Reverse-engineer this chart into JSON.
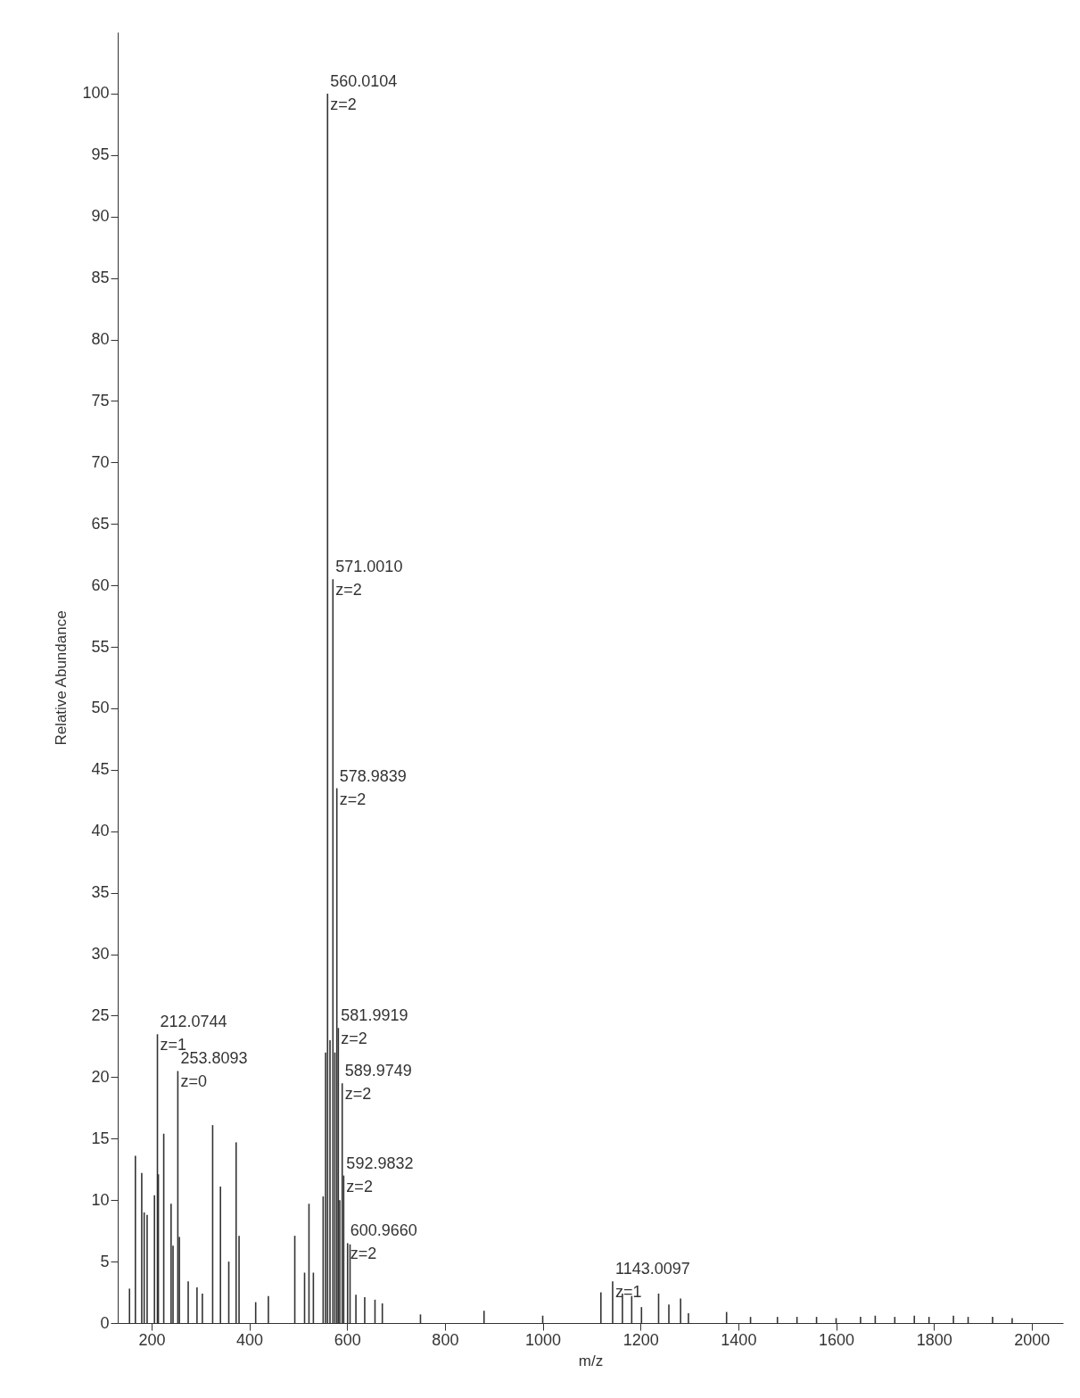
{
  "chart_data": {
    "type": "bar",
    "xlabel": "m/z",
    "ylabel": "Relative Abundance",
    "x": [
      155,
      167,
      180,
      185,
      191,
      206,
      212.0744,
      214,
      225,
      240,
      244,
      253.8093,
      257,
      275,
      293,
      304,
      325,
      341,
      358,
      373,
      379,
      413,
      439,
      493,
      513,
      522,
      531,
      551,
      556,
      560.0104,
      565,
      571.001,
      575,
      578.9839,
      581.9919,
      585,
      589.9749,
      592.9832,
      600.966,
      606,
      618,
      636,
      657,
      672,
      750,
      880,
      1000,
      1119,
      1143.0097,
      1163,
      1182,
      1202,
      1237,
      1258,
      1282,
      1298,
      1376,
      1425,
      1480,
      1520,
      1560,
      1600,
      1650,
      1680,
      1720,
      1760,
      1790,
      1840,
      1870,
      1920,
      1960
    ],
    "series": [
      {
        "color": "#333333",
        "values": [
          2.8,
          13.6,
          12.2,
          9,
          8.8,
          10.4,
          23.5,
          12.1,
          15.4,
          9.7,
          6.3,
          20.5,
          7,
          3.4,
          2.9,
          2.4,
          16.1,
          11.1,
          5,
          14.7,
          7.1,
          1.7,
          2.2,
          7.1,
          4.1,
          9.7,
          4.1,
          10.3,
          22,
          100,
          23,
          60.5,
          22,
          43.5,
          24,
          10,
          19.5,
          12,
          6.5,
          6.4,
          2.3,
          2.1,
          1.9,
          1.6,
          0.7,
          1,
          0.6,
          2.5,
          3.4,
          2.4,
          2.2,
          1.3,
          2.4,
          1.5,
          2,
          0.8,
          0.9,
          0.5,
          0.5,
          0.5,
          0.5,
          0.4,
          0.5,
          0.6,
          0.5,
          0.6,
          0.5,
          0.6,
          0.5,
          0.5,
          0.4
        ]
      }
    ],
    "xlim": [
      140,
      2055
    ],
    "xticks": [
      200,
      400,
      600,
      800,
      1000,
      1200,
      1400,
      1600,
      1800,
      2000
    ],
    "ylim": [
      0,
      105
    ],
    "yticks": [
      0,
      5,
      10,
      15,
      20,
      25,
      30,
      35,
      40,
      45,
      50,
      55,
      60,
      65,
      70,
      75,
      80,
      85,
      90,
      95,
      100
    ],
    "grid": false,
    "legend": false,
    "annotations": [
      {
        "text": "560.0104\nz=2",
        "x": 560.0104,
        "y": 100
      },
      {
        "text": "571.0010\nz=2",
        "x": 571.001,
        "y": 60.5
      },
      {
        "text": "578.9839\nz=2",
        "x": 578.9839,
        "y": 43.5
      },
      {
        "text": "581.9919\nz=2",
        "x": 581.9919,
        "y": 24
      },
      {
        "text": "589.9749\nz=2",
        "x": 589.9749,
        "y": 19.5
      },
      {
        "text": "592.9832\nz=2",
        "x": 592.9832,
        "y": 12
      },
      {
        "text": "600.9660\nz=2",
        "x": 600.966,
        "y": 6.5
      },
      {
        "text": "212.0744\nz=1",
        "x": 212.0744,
        "y": 23.5
      },
      {
        "text": "253.8093\nz=0",
        "x": 253.8093,
        "y": 20.5
      },
      {
        "text": "1143.0097\nz=1",
        "x": 1143.0097,
        "y": 3.4
      }
    ]
  }
}
